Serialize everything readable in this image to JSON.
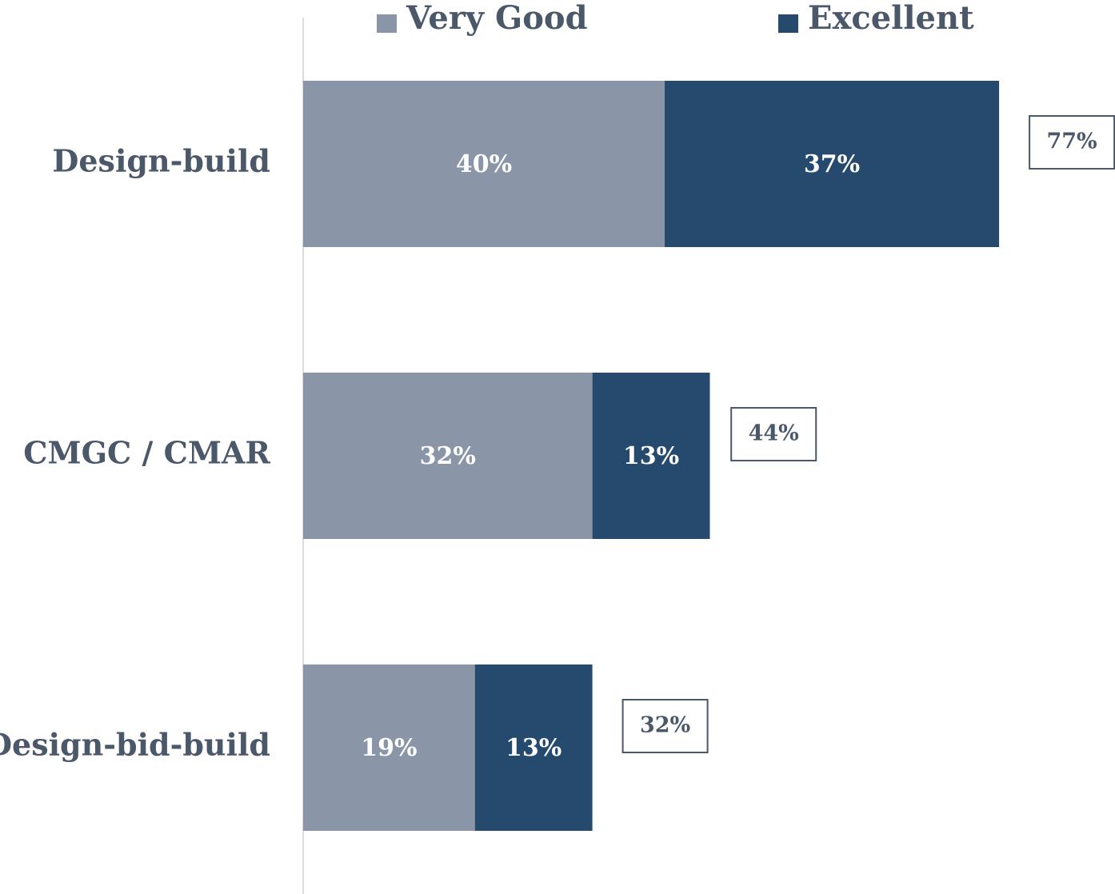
{
  "chart_data": {
    "type": "stacked-barh",
    "categories": [
      "Design-build",
      "CMGC / CMAR",
      "Design-bid-build"
    ],
    "series": [
      {
        "name": "Very Good",
        "color": "#8a95a7",
        "values": [
          40,
          32,
          19
        ],
        "value_labels": [
          "40%",
          "32%",
          "19%"
        ]
      },
      {
        "name": "Excellent",
        "color": "#264a6d",
        "values": [
          37,
          13,
          13
        ],
        "value_labels": [
          "37%",
          "13%",
          "13%"
        ]
      }
    ],
    "totals": [
      77,
      44,
      32
    ],
    "total_labels": [
      "77%",
      "44%",
      "32%"
    ],
    "legend": "top"
  }
}
